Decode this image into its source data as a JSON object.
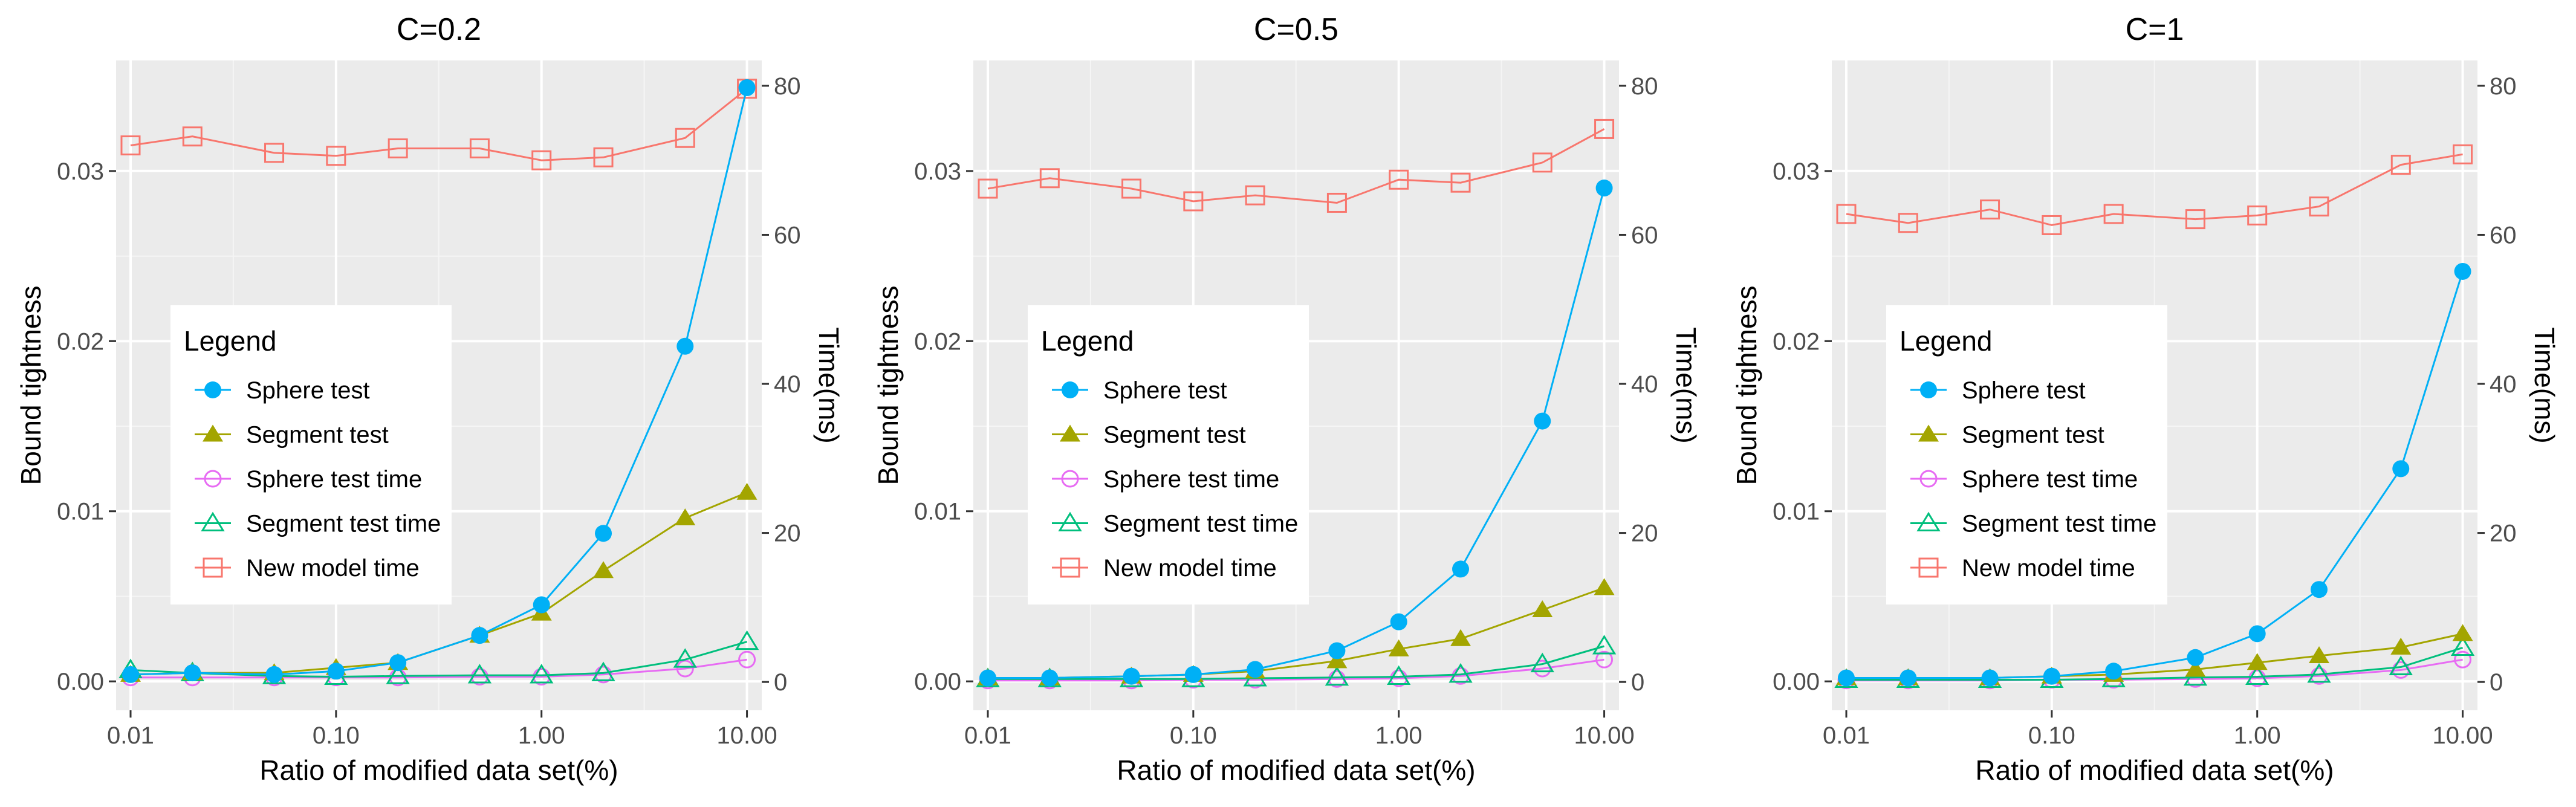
{
  "legend": {
    "title": "Legend",
    "items": [
      {
        "label": "Sphere test",
        "color": "#00B0F6",
        "shape": "filled-circle"
      },
      {
        "label": "Segment test",
        "color": "#A3A500",
        "shape": "filled-triangle"
      },
      {
        "label": "Sphere test time",
        "color": "#E76BF3",
        "shape": "open-circle"
      },
      {
        "label": "Segment test time",
        "color": "#00BF7D",
        "shape": "open-triangle"
      },
      {
        "label": "New model time",
        "color": "#F8766D",
        "shape": "open-square"
      }
    ]
  },
  "chart_data": [
    {
      "type": "line",
      "title": "C=0.2",
      "xlabel": "Ratio of modified data set(%)",
      "ylabel": "Bound tightness",
      "y2label": "Time(ms)",
      "x_scale": "log",
      "x": [
        0.01,
        0.02,
        0.05,
        0.1,
        0.2,
        0.5,
        1,
        2,
        5,
        10
      ],
      "x_ticks": [
        0.01,
        0.1,
        1,
        10
      ],
      "x_tick_labels": [
        "0.01",
        "0.10",
        "1.00",
        "10.00"
      ],
      "xlim": [
        0.0085,
        11.8
      ],
      "ylim": [
        -0.0017,
        0.0365
      ],
      "y_ticks": [
        0,
        0.01,
        0.02,
        0.03
      ],
      "y_tick_labels": [
        "0.00",
        "0.01",
        "0.02",
        "0.03"
      ],
      "y2lim": [
        -3.8,
        83.4
      ],
      "y2_ticks": [
        0,
        20,
        40,
        60,
        80
      ],
      "y2_tick_labels": [
        "0",
        "20",
        "40",
        "60",
        "80"
      ],
      "grid": true,
      "legend_position": "left-middle",
      "series": [
        {
          "name": "Sphere test",
          "axis": "left",
          "values": [
            0.0004,
            0.0005,
            0.0004,
            0.0006,
            0.0011,
            0.0027,
            0.0045,
            0.0087,
            0.0197,
            0.0349
          ]
        },
        {
          "name": "Segment test",
          "axis": "left",
          "values": [
            0.0004,
            0.0005,
            0.0005,
            0.0008,
            0.0011,
            0.0027,
            0.004,
            0.0065,
            0.0096,
            0.0111
          ]
        },
        {
          "name": "Sphere test time",
          "axis": "right",
          "values": [
            0.6,
            0.6,
            0.6,
            0.6,
            0.6,
            0.7,
            0.7,
            1.0,
            1.8,
            3.0
          ]
        },
        {
          "name": "Segment test time",
          "axis": "right",
          "values": [
            1.6,
            1.2,
            0.8,
            0.7,
            0.8,
            0.9,
            0.9,
            1.2,
            3.0,
            5.4
          ]
        },
        {
          "name": "New model time",
          "axis": "right",
          "values": [
            72.0,
            73.2,
            71.0,
            70.6,
            71.6,
            71.6,
            70.0,
            70.4,
            73.0,
            79.6
          ]
        }
      ]
    },
    {
      "type": "line",
      "title": "C=0.5",
      "xlabel": "Ratio of modified data set(%)",
      "ylabel": "Bound tightness",
      "y2label": "Time(ms)",
      "x_scale": "log",
      "x": [
        0.01,
        0.02,
        0.05,
        0.1,
        0.2,
        0.5,
        1,
        2,
        5,
        10
      ],
      "x_ticks": [
        0.01,
        0.1,
        1,
        10
      ],
      "x_tick_labels": [
        "0.01",
        "0.10",
        "1.00",
        "10.00"
      ],
      "xlim": [
        0.0085,
        11.8
      ],
      "ylim": [
        -0.0017,
        0.0365
      ],
      "y_ticks": [
        0,
        0.01,
        0.02,
        0.03
      ],
      "y_tick_labels": [
        "0.00",
        "0.01",
        "0.02",
        "0.03"
      ],
      "y2lim": [
        -3.8,
        83.4
      ],
      "y2_ticks": [
        0,
        20,
        40,
        60,
        80
      ],
      "y2_tick_labels": [
        "0",
        "20",
        "40",
        "60",
        "80"
      ],
      "grid": true,
      "legend_position": "left-middle",
      "series": [
        {
          "name": "Sphere test",
          "axis": "left",
          "values": [
            0.0002,
            0.0002,
            0.0003,
            0.0004,
            0.0007,
            0.0018,
            0.0035,
            0.0066,
            0.0153,
            0.029
          ]
        },
        {
          "name": "Segment test",
          "axis": "left",
          "values": [
            0.0002,
            0.0002,
            0.0003,
            0.0004,
            0.0006,
            0.0012,
            0.0019,
            0.0025,
            0.0042,
            0.0055
          ]
        },
        {
          "name": "Sphere test time",
          "axis": "right",
          "values": [
            0.2,
            0.2,
            0.2,
            0.3,
            0.3,
            0.4,
            0.5,
            0.8,
            1.8,
            3.0
          ]
        },
        {
          "name": "Segment test time",
          "axis": "right",
          "values": [
            0.4,
            0.4,
            0.4,
            0.4,
            0.5,
            0.6,
            0.7,
            1.0,
            2.4,
            4.8
          ]
        },
        {
          "name": "New model time",
          "axis": "right",
          "values": [
            66.2,
            67.6,
            66.2,
            64.5,
            65.3,
            64.3,
            67.4,
            67.0,
            69.7,
            74.2
          ]
        }
      ]
    },
    {
      "type": "line",
      "title": "C=1",
      "xlabel": "Ratio of modified data set(%)",
      "ylabel": "Bound tightness",
      "y2label": "Time(ms)",
      "x_scale": "log",
      "x": [
        0.01,
        0.02,
        0.05,
        0.1,
        0.2,
        0.5,
        1,
        2,
        5,
        10
      ],
      "x_ticks": [
        0.01,
        0.1,
        1,
        10
      ],
      "x_tick_labels": [
        "0.01",
        "0.10",
        "1.00",
        "10.00"
      ],
      "xlim": [
        0.0085,
        11.8
      ],
      "ylim": [
        -0.0017,
        0.0365
      ],
      "y_ticks": [
        0,
        0.01,
        0.02,
        0.03
      ],
      "y_tick_labels": [
        "0.00",
        "0.01",
        "0.02",
        "0.03"
      ],
      "y2lim": [
        -3.8,
        83.4
      ],
      "y2_ticks": [
        0,
        20,
        40,
        60,
        80
      ],
      "y2_tick_labels": [
        "0",
        "20",
        "40",
        "60",
        "80"
      ],
      "grid": true,
      "legend_position": "left-middle",
      "series": [
        {
          "name": "Sphere test",
          "axis": "left",
          "values": [
            0.0002,
            0.0002,
            0.0002,
            0.0003,
            0.0006,
            0.0014,
            0.0028,
            0.0054,
            0.0125,
            0.0241
          ]
        },
        {
          "name": "Segment test",
          "axis": "left",
          "values": [
            0.0002,
            0.0002,
            0.0002,
            0.0003,
            0.0004,
            0.0007,
            0.0011,
            0.0015,
            0.002,
            0.0028
          ]
        },
        {
          "name": "Sphere test time",
          "axis": "right",
          "values": [
            0.2,
            0.2,
            0.2,
            0.3,
            0.3,
            0.4,
            0.5,
            0.8,
            1.6,
            3.0
          ]
        },
        {
          "name": "Segment test time",
          "axis": "right",
          "values": [
            0.3,
            0.3,
            0.3,
            0.3,
            0.4,
            0.6,
            0.7,
            1.0,
            2.0,
            4.6
          ]
        },
        {
          "name": "New model time",
          "axis": "right",
          "values": [
            62.8,
            61.6,
            63.4,
            61.3,
            62.8,
            62.1,
            62.6,
            63.8,
            69.4,
            70.8
          ]
        }
      ]
    }
  ]
}
